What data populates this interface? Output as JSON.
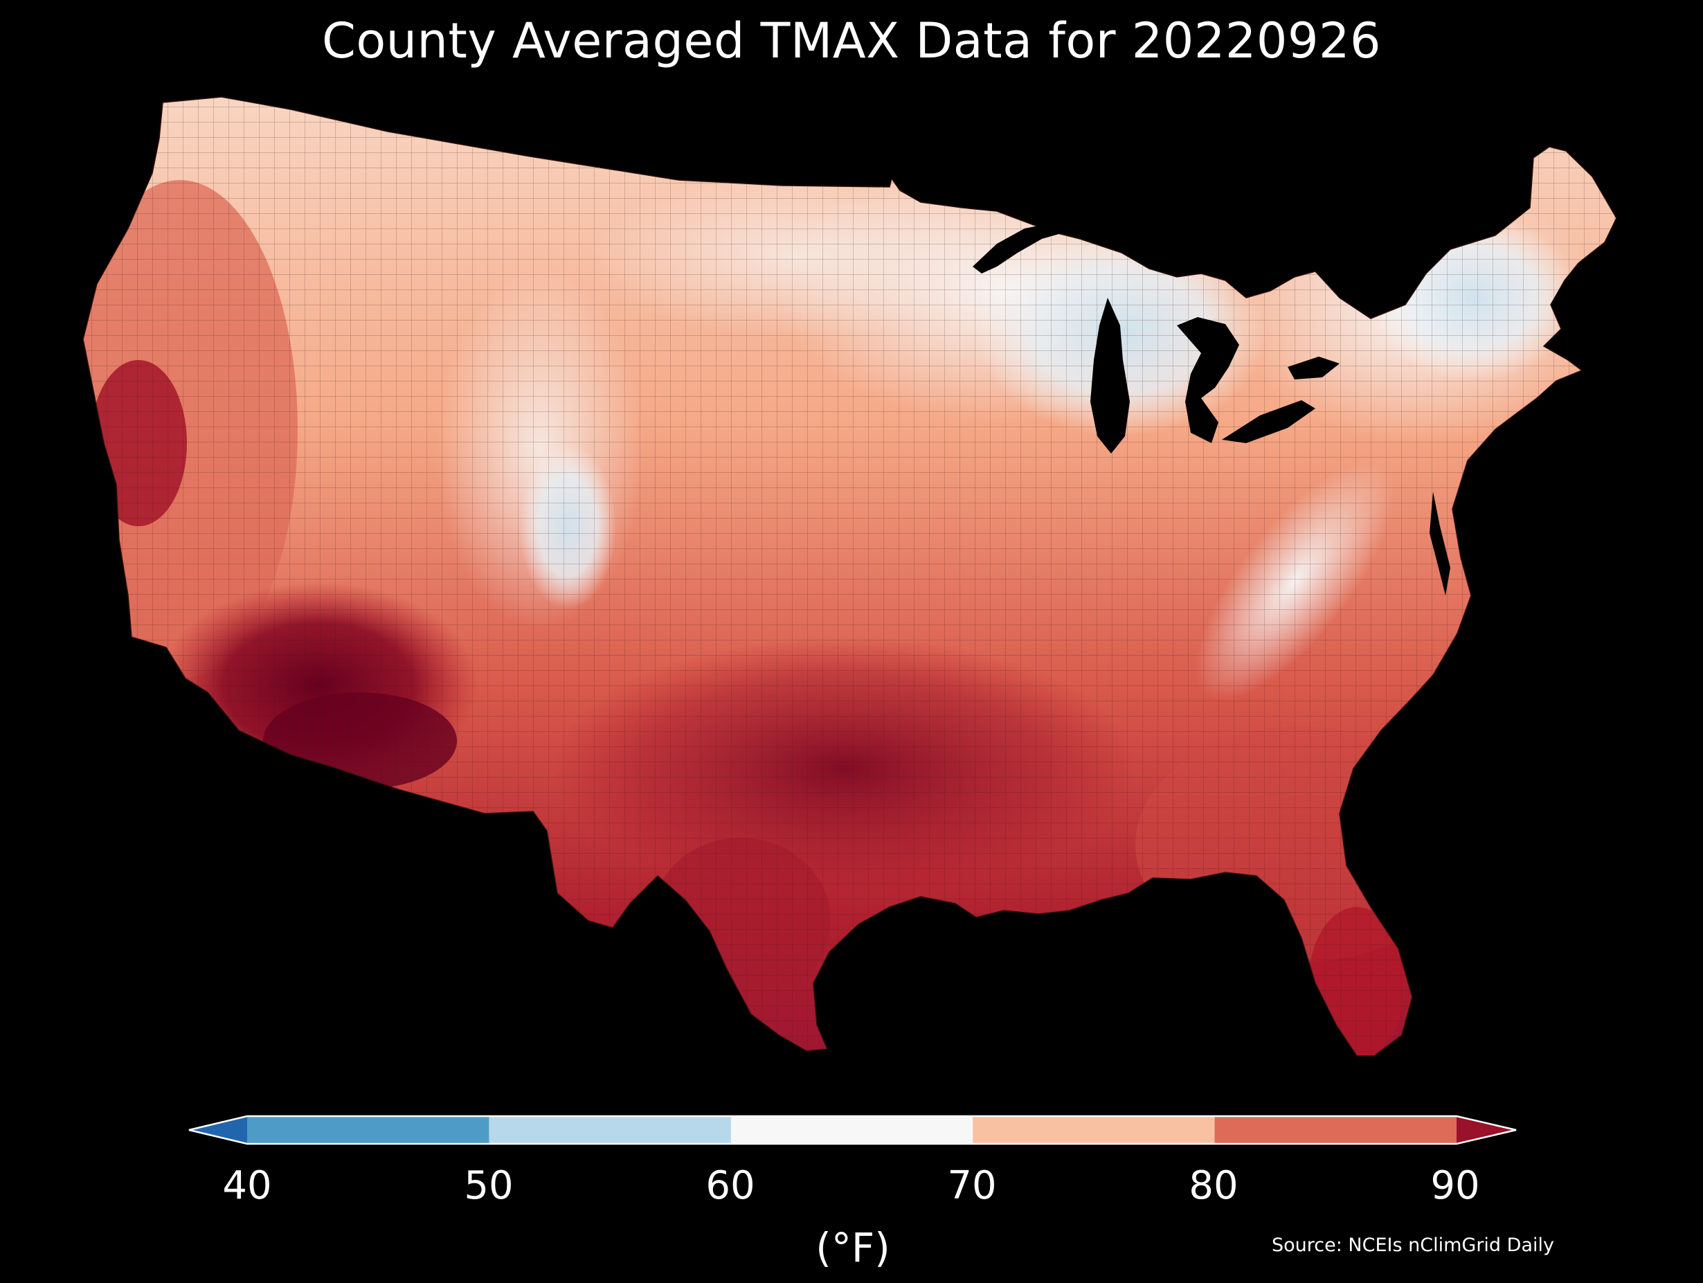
{
  "title": "County Averaged TMAX Data for 20220926",
  "colorbar": {
    "unit_label": "(°F)",
    "ticks": [
      "40",
      "50",
      "60",
      "70",
      "80",
      "90"
    ],
    "bins": [
      {
        "range": "<40",
        "color": "#2166ac"
      },
      {
        "range": "40-50",
        "color": "#4f9bc8"
      },
      {
        "range": "50-60",
        "color": "#b7d8ea"
      },
      {
        "range": "60-70",
        "color": "#f7f7f7"
      },
      {
        "range": "70-80",
        "color": "#f8c1a2"
      },
      {
        "range": "80-90",
        "color": "#dd6b58"
      },
      {
        "range": ">90",
        "color": "#99122a"
      }
    ]
  },
  "source": "Source: NCEIs nClimGrid Daily"
}
